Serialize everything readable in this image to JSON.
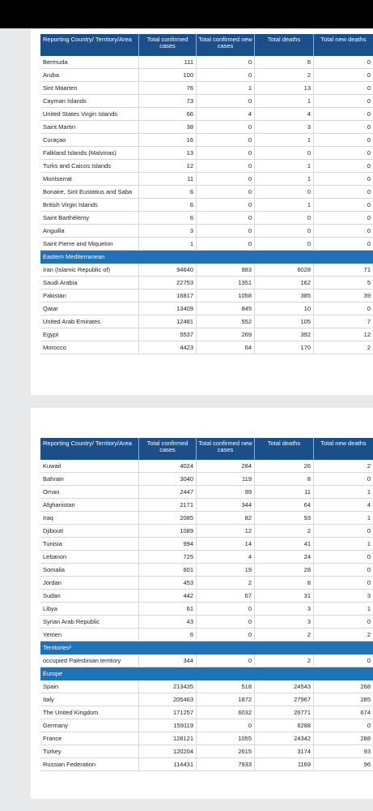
{
  "pages": [
    {
      "headers": [
        "Reporting Country/ Territory/Area",
        "Total confirmed cases",
        "Total confirmed new cases",
        "Total deaths",
        "Total new deaths"
      ],
      "rows": [
        {
          "cells": [
            "Bermuda",
            111,
            0,
            6,
            0
          ]
        },
        {
          "cells": [
            "Aruba",
            100,
            0,
            2,
            0
          ]
        },
        {
          "cells": [
            "Sint Maarten",
            76,
            1,
            13,
            0
          ]
        },
        {
          "cells": [
            "Cayman Islands",
            73,
            0,
            1,
            0
          ]
        },
        {
          "cells": [
            "United States Virgin Islands",
            66,
            4,
            4,
            0
          ]
        },
        {
          "cells": [
            "Saint Martin",
            38,
            0,
            3,
            0
          ]
        },
        {
          "cells": [
            "Curaçao",
            16,
            0,
            1,
            0
          ]
        },
        {
          "cells": [
            "Falkland Islands (Malvinas)",
            13,
            0,
            0,
            0
          ]
        },
        {
          "cells": [
            "Turks and Caicos Islands",
            12,
            0,
            1,
            0
          ]
        },
        {
          "cells": [
            "Montserrat",
            11,
            0,
            1,
            0
          ]
        },
        {
          "cells": [
            "Bonaire, Sint Eustatius and Saba",
            6,
            0,
            0,
            0
          ]
        },
        {
          "cells": [
            "British Virgin Islands",
            6,
            0,
            1,
            0
          ]
        },
        {
          "cells": [
            "Saint Barthélemy",
            6,
            0,
            0,
            0
          ]
        },
        {
          "cells": [
            "Anguilla",
            3,
            0,
            0,
            0
          ]
        },
        {
          "cells": [
            "Saint Pierre and Miquelon",
            1,
            0,
            0,
            0
          ]
        },
        {
          "section": "Eastern Mediterranean"
        },
        {
          "cells": [
            "Iran (Islamic Republic of)",
            94640,
            983,
            6028,
            71
          ]
        },
        {
          "cells": [
            "Saudi Arabia",
            22753,
            1351,
            162,
            5
          ]
        },
        {
          "cells": [
            "Pakistan",
            16817,
            1058,
            385,
            39
          ]
        },
        {
          "cells": [
            "Qatar",
            13409,
            845,
            10,
            0
          ]
        },
        {
          "cells": [
            "United Arab Emirates",
            12481,
            552,
            105,
            7
          ]
        },
        {
          "cells": [
            "Egypt",
            5537,
            269,
            392,
            12
          ]
        },
        {
          "cells": [
            "Morocco",
            4423,
            64,
            170,
            2
          ]
        }
      ]
    },
    {
      "headers": [
        "Reporting Country/ Territory/Area",
        "Total confirmed cases",
        "Total confirmed new cases",
        "Total deaths",
        "Total new deaths"
      ],
      "rows": [
        {
          "cells": [
            "Kuwait",
            4024,
            284,
            26,
            2
          ]
        },
        {
          "cells": [
            "Bahrain",
            3040,
            119,
            8,
            0
          ]
        },
        {
          "cells": [
            "Oman",
            2447,
            99,
            11,
            1
          ]
        },
        {
          "cells": [
            "Afghanistan",
            2171,
            344,
            64,
            4
          ]
        },
        {
          "cells": [
            "Iraq",
            2085,
            82,
            93,
            1
          ]
        },
        {
          "cells": [
            "Djibouti",
            1089,
            12,
            2,
            0
          ]
        },
        {
          "cells": [
            "Tunisia",
            994,
            14,
            41,
            1
          ]
        },
        {
          "cells": [
            "Lebanon",
            725,
            4,
            24,
            0
          ]
        },
        {
          "cells": [
            "Somalia",
            601,
            19,
            28,
            0
          ]
        },
        {
          "cells": [
            "Jordan",
            453,
            2,
            8,
            0
          ]
        },
        {
          "cells": [
            "Sudan",
            442,
            67,
            31,
            3
          ]
        },
        {
          "cells": [
            "Libya",
            61,
            0,
            3,
            1
          ]
        },
        {
          "cells": [
            "Syrian Arab Republic",
            43,
            0,
            3,
            0
          ]
        },
        {
          "cells": [
            "Yemen",
            6,
            0,
            2,
            2
          ]
        },
        {
          "section": "Territoriesⁱⁱ"
        },
        {
          "cells": [
            "occupied Palestinian territory",
            344,
            0,
            2,
            0
          ]
        },
        {
          "section": "Europe"
        },
        {
          "cells": [
            "Spain",
            213435,
            518,
            24543,
            268
          ]
        },
        {
          "cells": [
            "Italy",
            205463,
            1872,
            27967,
            285
          ]
        },
        {
          "cells": [
            "The United Kingdom",
            171257,
            6032,
            26771,
            674
          ]
        },
        {
          "cells": [
            "Germany",
            159119,
            0,
            6288,
            0
          ]
        },
        {
          "cells": [
            "France",
            128121,
            1055,
            24342,
            288
          ]
        },
        {
          "cells": [
            "Turkey",
            120204,
            2615,
            3174,
            93
          ]
        },
        {
          "cells": [
            "Russian Federation",
            114431,
            7933,
            1169,
            96
          ]
        }
      ]
    }
  ]
}
